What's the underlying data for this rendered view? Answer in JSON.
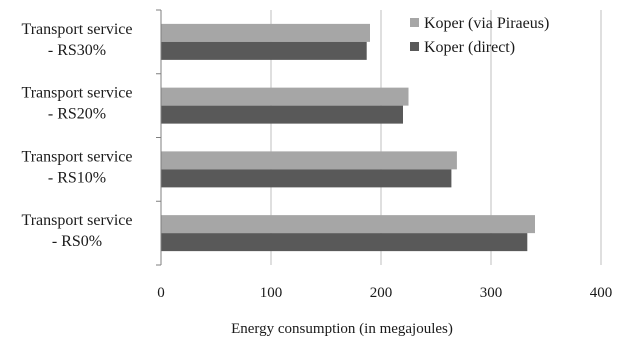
{
  "chart_data": {
    "type": "bar",
    "orientation": "horizontal",
    "categories": [
      [
        "Transport service",
        "- RS30%"
      ],
      [
        "Transport service",
        "- RS20%"
      ],
      [
        "Transport service",
        "- RS10%"
      ],
      [
        "Transport service",
        "- RS0%"
      ]
    ],
    "series": [
      {
        "name": "Koper (via Piraeus)",
        "values": [
          190,
          225,
          269,
          340
        ],
        "color": "#a6a6a6"
      },
      {
        "name": "Koper (direct)",
        "values": [
          187,
          220,
          264,
          333
        ],
        "color": "#595959"
      }
    ],
    "xlabel": "Energy consumption (in megajoules)",
    "ylabel": "",
    "xlim": [
      0,
      400
    ],
    "xticks": [
      0,
      100,
      200,
      300,
      400
    ],
    "grid": "vertical",
    "legend_position": "top-right"
  }
}
